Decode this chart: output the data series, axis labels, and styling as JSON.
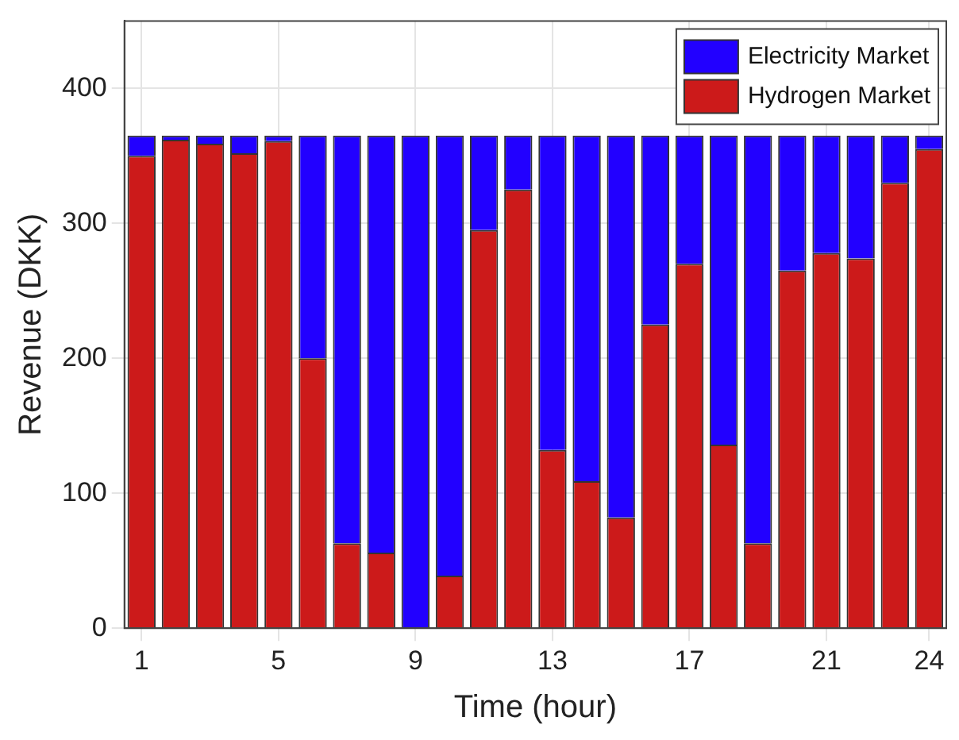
{
  "chart_data": {
    "type": "bar",
    "xlabel": "Time (hour)",
    "ylabel": "Revenue (DKK)",
    "categories": [
      "1",
      null,
      null,
      null,
      "5",
      null,
      null,
      null,
      "9",
      null,
      null,
      null,
      "13",
      null,
      null,
      null,
      "17",
      null,
      null,
      null,
      "21",
      null,
      null,
      "24"
    ],
    "stacked": true,
    "series": [
      {
        "name": "Hydrogen Market",
        "color": "#cc1a1a",
        "values": [
          350,
          362,
          359,
          352,
          361,
          200,
          63,
          56,
          0,
          39,
          295,
          325,
          132,
          109,
          82,
          225,
          270,
          136,
          63,
          265,
          278,
          274,
          330,
          355
        ]
      },
      {
        "name": "Electricity Market",
        "color": "#2200ff",
        "values": [
          15,
          3,
          6,
          13,
          4,
          165,
          302,
          309,
          365,
          326,
          70,
          40,
          233,
          256,
          283,
          140,
          95,
          229,
          302,
          100,
          87,
          91,
          35,
          10
        ]
      }
    ],
    "ylim": [
      0,
      450
    ],
    "yticks": [
      0,
      100,
      200,
      300,
      400
    ],
    "grid": true,
    "legend": "top right"
  }
}
